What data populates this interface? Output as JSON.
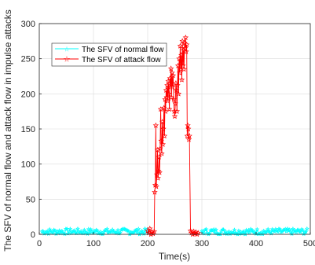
{
  "chart_data": {
    "type": "line",
    "xlabel": "Time(s)",
    "ylabel": "The SFV of normal flow and attack flow in impulse attacks",
    "xlim": [
      0,
      500
    ],
    "ylim": [
      0,
      300
    ],
    "xticks": [
      0,
      100,
      200,
      300,
      400,
      500
    ],
    "yticks": [
      0,
      50,
      100,
      150,
      200,
      250,
      300
    ],
    "grid": true,
    "legend_position": "top-left",
    "series": [
      {
        "name": "The SFV of normal flow",
        "color": "#00ffff",
        "marker": "star",
        "segments": [
          {
            "x_range": [
              5,
              200
            ],
            "step": 2,
            "min": 0,
            "max": 8
          },
          {
            "x_range": [
              300,
              495
            ],
            "step": 2,
            "min": 0,
            "max": 8
          }
        ]
      },
      {
        "name": "The SFV of attack flow",
        "color": "#ff0000",
        "marker": "star",
        "points": [
          [
            200,
            5
          ],
          [
            202,
            2
          ],
          [
            204,
            8
          ],
          [
            206,
            0
          ],
          [
            208,
            3
          ],
          [
            210,
            1
          ],
          [
            212,
            4
          ],
          [
            213,
            60
          ],
          [
            214,
            70
          ],
          [
            215,
            155
          ],
          [
            216,
            68
          ],
          [
            217,
            85
          ],
          [
            218,
            120
          ],
          [
            219,
            80
          ],
          [
            220,
            90
          ],
          [
            221,
            110
          ],
          [
            222,
            88
          ],
          [
            223,
            122
          ],
          [
            224,
            178
          ],
          [
            225,
            133
          ],
          [
            226,
            115
          ],
          [
            227,
            160
          ],
          [
            228,
            128
          ],
          [
            229,
            150
          ],
          [
            230,
            180
          ],
          [
            231,
            140
          ],
          [
            232,
            192
          ],
          [
            233,
            175
          ],
          [
            234,
            205
          ],
          [
            235,
            195
          ],
          [
            236,
            212
          ],
          [
            237,
            190
          ],
          [
            238,
            218
          ],
          [
            239,
            200
          ],
          [
            240,
            178
          ],
          [
            241,
            222
          ],
          [
            242,
            210
          ],
          [
            243,
            236
          ],
          [
            244,
            195
          ],
          [
            245,
            230
          ],
          [
            246,
            210
          ],
          [
            247,
            226
          ],
          [
            248,
            192
          ],
          [
            249,
            175
          ],
          [
            250,
            168
          ],
          [
            251,
            186
          ],
          [
            252,
            215
          ],
          [
            253,
            205
          ],
          [
            254,
            175
          ],
          [
            255,
            212
          ],
          [
            256,
            240
          ],
          [
            257,
            200
          ],
          [
            258,
            250
          ],
          [
            259,
            230
          ],
          [
            260,
            268
          ],
          [
            261,
            235
          ],
          [
            262,
            255
          ],
          [
            263,
            220
          ],
          [
            264,
            275
          ],
          [
            265,
            240
          ],
          [
            266,
            262
          ],
          [
            267,
            235
          ],
          [
            268,
            272
          ],
          [
            269,
            265
          ],
          [
            270,
            280
          ],
          [
            271,
            260
          ],
          [
            272,
            270
          ],
          [
            273,
            140
          ],
          [
            274,
            155
          ],
          [
            275,
            150
          ],
          [
            276,
            135
          ],
          [
            277,
            140
          ],
          [
            279,
            5
          ],
          [
            281,
            2
          ],
          [
            283,
            0
          ],
          [
            285,
            4
          ],
          [
            287,
            1
          ],
          [
            289,
            3
          ],
          [
            291,
            0
          ],
          [
            293,
            2
          ]
        ]
      }
    ]
  }
}
